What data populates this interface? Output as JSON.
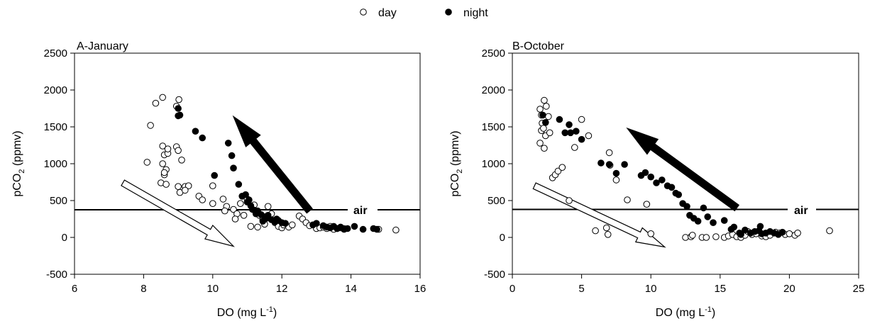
{
  "legend": {
    "items": [
      {
        "label": "day",
        "marker": "open-circle"
      },
      {
        "label": "night",
        "marker": "filled-circle"
      }
    ],
    "placement": "top-center"
  },
  "chart_data": [
    {
      "type": "scatter",
      "panel_title": "A-January",
      "xlabel": "DO (mg L⁻¹)",
      "ylabel": "pCO₂ (ppmv)",
      "xlim": [
        6,
        16
      ],
      "ylim": [
        -500,
        2500
      ],
      "xticks": [
        6,
        8,
        10,
        12,
        14,
        16
      ],
      "yticks": [
        -500,
        0,
        500,
        1000,
        1500,
        2000,
        2500
      ],
      "grid": false,
      "reference_line": {
        "label": "air",
        "y": 375
      },
      "arrows": [
        {
          "style": "open",
          "from": [
            7.4,
            740
          ],
          "to": [
            10.6,
            -120
          ]
        },
        {
          "style": "filled",
          "from": [
            12.8,
            360
          ],
          "to": [
            10.6,
            1640
          ]
        }
      ],
      "series": [
        {
          "name": "day",
          "marker": "open",
          "x": [
            8.1,
            8.2,
            8.35,
            8.55,
            8.95,
            9.02,
            8.95,
            8.55,
            8.6,
            8.7,
            8.55,
            8.7,
            9.0,
            9.1,
            8.65,
            9.2,
            8.6,
            8.5,
            8.65,
            8.6,
            9.0,
            9.3,
            9.05,
            9.2,
            9.6,
            9.7,
            10.0,
            10.0,
            10.3,
            10.4,
            10.6,
            10.7,
            10.9,
            10.65,
            10.8,
            11.0,
            11.2,
            11.35,
            11.45,
            11.5,
            11.6,
            11.7,
            11.8,
            11.9,
            12.0,
            12.2,
            12.3,
            12.5,
            12.6,
            12.7,
            12.8,
            13.0,
            13.1,
            13.2,
            13.3,
            13.4,
            13.5,
            13.6,
            13.7,
            13.8,
            14.8,
            15.3,
            11.1,
            11.3,
            12.05,
            11.55,
            10.35
          ],
          "y": [
            1020,
            1520,
            1820,
            1900,
            1780,
            1870,
            1230,
            1240,
            1120,
            1140,
            1000,
            1200,
            1180,
            1050,
            920,
            690,
            850,
            740,
            720,
            880,
            690,
            700,
            610,
            640,
            560,
            510,
            460,
            700,
            520,
            420,
            380,
            320,
            300,
            250,
            460,
            520,
            440,
            300,
            240,
            180,
            420,
            320,
            200,
            150,
            130,
            140,
            170,
            290,
            250,
            200,
            160,
            120,
            130,
            140,
            120,
            150,
            110,
            120,
            130,
            120,
            110,
            100,
            150,
            140,
            170,
            260,
            360
          ]
        },
        {
          "name": "night",
          "marker": "filled",
          "x": [
            9.0,
            9.05,
            9.5,
            9.7,
            10.05,
            10.45,
            10.55,
            10.6,
            10.75,
            10.85,
            10.95,
            11.0,
            11.05,
            11.1,
            11.15,
            11.2,
            11.25,
            11.3,
            11.4,
            11.5,
            11.55,
            11.6,
            11.7,
            11.8,
            11.85,
            11.9,
            12.0,
            12.1,
            12.9,
            13.0,
            13.2,
            13.3,
            13.4,
            13.5,
            13.6,
            13.7,
            13.8,
            13.9,
            14.1,
            14.35,
            14.65,
            14.75,
            9.0,
            11.45
          ],
          "y": [
            1750,
            1660,
            1440,
            1350,
            840,
            1280,
            1110,
            940,
            720,
            560,
            580,
            480,
            510,
            430,
            380,
            370,
            320,
            360,
            310,
            280,
            260,
            300,
            240,
            210,
            250,
            230,
            200,
            190,
            170,
            190,
            160,
            140,
            130,
            150,
            120,
            140,
            110,
            120,
            150,
            110,
            120,
            110,
            1650,
            220
          ]
        }
      ]
    },
    {
      "type": "scatter",
      "panel_title": "B-October",
      "xlabel": "DO (mg L⁻¹)",
      "ylabel": "pCO₂ (ppmv)",
      "xlim": [
        0,
        25
      ],
      "ylim": [
        -500,
        2500
      ],
      "xticks": [
        0,
        5,
        10,
        15,
        20,
        25
      ],
      "yticks": [
        -500,
        0,
        500,
        1000,
        1500,
        2000,
        2500
      ],
      "grid": false,
      "reference_line": {
        "label": "air",
        "y": 380
      },
      "arrows": [
        {
          "style": "open",
          "from": [
            1.6,
            700
          ],
          "to": [
            11.0,
            -130
          ]
        },
        {
          "style": "filled",
          "from": [
            16.2,
            400
          ],
          "to": [
            8.3,
            1480
          ]
        }
      ],
      "series": [
        {
          "name": "day",
          "marker": "open",
          "x": [
            2.0,
            2.1,
            2.3,
            2.45,
            2.6,
            2.1,
            2.4,
            2.0,
            2.3,
            2.15,
            2.25,
            2.7,
            2.9,
            3.1,
            3.3,
            3.6,
            5.0,
            5.5,
            4.5,
            4.1,
            6.0,
            6.8,
            6.9,
            7.0,
            7.05,
            7.5,
            8.3,
            9.7,
            10.0,
            12.5,
            12.9,
            13.0,
            13.7,
            14.0,
            14.7,
            15.3,
            15.6,
            15.9,
            16.2,
            16.5,
            16.8,
            17.0,
            17.3,
            17.6,
            18.0,
            18.3,
            18.6,
            19.0,
            19.3,
            19.7,
            20.0,
            20.4,
            20.6,
            22.9
          ],
          "y": [
            1740,
            1660,
            1860,
            1780,
            1640,
            1450,
            1380,
            1280,
            1210,
            1550,
            1480,
            1420,
            810,
            850,
            900,
            950,
            1600,
            1380,
            1220,
            500,
            90,
            130,
            40,
            1150,
            980,
            780,
            510,
            450,
            50,
            0,
            10,
            30,
            0,
            0,
            10,
            0,
            20,
            40,
            10,
            0,
            30,
            80,
            40,
            50,
            20,
            10,
            30,
            70,
            60,
            40,
            50,
            30,
            60,
            90
          ]
        },
        {
          "name": "night",
          "marker": "filled",
          "x": [
            2.2,
            2.4,
            3.4,
            3.8,
            4.1,
            4.2,
            4.6,
            5.0,
            6.4,
            7.0,
            7.5,
            8.1,
            9.3,
            9.6,
            10.0,
            10.4,
            10.8,
            11.2,
            11.5,
            11.8,
            12.0,
            12.3,
            12.6,
            12.8,
            13.1,
            13.4,
            13.8,
            14.1,
            14.5,
            15.3,
            15.8,
            16.4,
            16.8,
            17.2,
            17.5,
            17.8,
            18.0,
            18.3,
            18.6,
            18.9,
            19.2,
            19.5,
            16.0,
            16.5,
            17.9
          ],
          "y": [
            1660,
            1560,
            1600,
            1420,
            1530,
            1420,
            1440,
            1330,
            1010,
            990,
            870,
            990,
            840,
            880,
            820,
            740,
            780,
            700,
            680,
            600,
            580,
            460,
            420,
            300,
            260,
            220,
            400,
            280,
            200,
            230,
            110,
            60,
            100,
            60,
            80,
            90,
            50,
            60,
            80,
            60,
            40,
            70,
            140,
            40,
            150
          ]
        }
      ]
    }
  ]
}
